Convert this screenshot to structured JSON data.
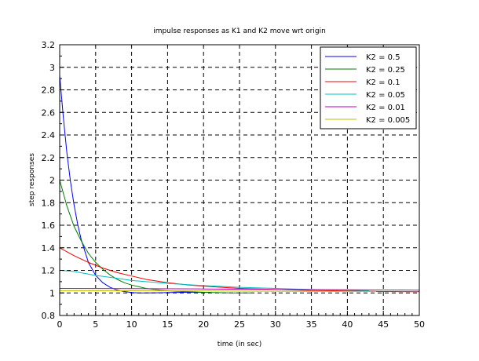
{
  "chart_data": {
    "type": "line",
    "title": "impulse responses as K1 and K2 move wrt origin",
    "xlabel": "time (in sec)",
    "ylabel": "step responses",
    "xlim": [
      0,
      50
    ],
    "ylim": [
      0.8,
      3.2
    ],
    "x_ticks": [
      0,
      5,
      10,
      15,
      20,
      25,
      30,
      35,
      40,
      45,
      50
    ],
    "y_ticks": [
      0.8,
      1,
      1.2,
      1.4,
      1.6,
      1.8,
      2,
      2.2,
      2.4,
      2.6,
      2.8,
      3,
      3.2
    ],
    "grid": true,
    "legend_position": "top-right",
    "series": [
      {
        "name": "K2 = 0.5",
        "color": "#0000ff",
        "x": [
          0,
          0.5,
          1,
          1.5,
          2,
          2.5,
          3,
          4,
          5,
          6,
          7,
          8,
          9,
          10,
          11,
          12,
          14,
          17,
          20,
          21
        ],
        "y": [
          2.93,
          2.56,
          2.24,
          1.99,
          1.78,
          1.61,
          1.47,
          1.27,
          1.155,
          1.09,
          1.05,
          1.025,
          1.012,
          1.004,
          1.0,
          1.0,
          1.002,
          1.005,
          1.005,
          1.005
        ]
      },
      {
        "name": "K2 = 0.25",
        "color": "#007f00",
        "x": [
          0,
          1,
          2,
          3,
          4,
          5,
          6,
          7,
          8,
          9,
          10,
          12,
          14,
          16,
          18,
          20,
          24,
          27
        ],
        "y": [
          2.0,
          1.77,
          1.59,
          1.46,
          1.35,
          1.27,
          1.21,
          1.16,
          1.12,
          1.09,
          1.07,
          1.04,
          1.025,
          1.015,
          1.01,
          1.005,
          1.0,
          1.0
        ]
      },
      {
        "name": "K2 = 0.1",
        "color": "#ff0000",
        "x": [
          0,
          2,
          4,
          6,
          8,
          10,
          12,
          15,
          18,
          21,
          25,
          30,
          35,
          40,
          45,
          50
        ],
        "y": [
          1.4,
          1.33,
          1.27,
          1.22,
          1.18,
          1.15,
          1.12,
          1.09,
          1.07,
          1.055,
          1.04,
          1.03,
          1.022,
          1.017,
          1.012,
          1.01
        ]
      },
      {
        "name": "K2 = 0.05",
        "color": "#00bfbf",
        "x": [
          0,
          2,
          5,
          8,
          10,
          13,
          16,
          20,
          25,
          30,
          35,
          40,
          43
        ],
        "y": [
          1.2,
          1.19,
          1.155,
          1.13,
          1.11,
          1.095,
          1.08,
          1.065,
          1.05,
          1.04,
          1.03,
          1.025,
          1.02
        ]
      },
      {
        "name": "K2 = 0.01",
        "color": "#bf00bf",
        "x": [
          0,
          10,
          20,
          30,
          40,
          50
        ],
        "y": [
          1.04,
          1.038,
          1.035,
          1.03,
          1.028,
          1.025
        ]
      },
      {
        "name": "K2 = 0.005",
        "color": "#bfbf00",
        "x": [
          0,
          10,
          20,
          30,
          40,
          44
        ],
        "y": [
          1.02,
          1.019,
          1.017,
          1.015,
          1.013,
          1.012
        ]
      }
    ]
  }
}
